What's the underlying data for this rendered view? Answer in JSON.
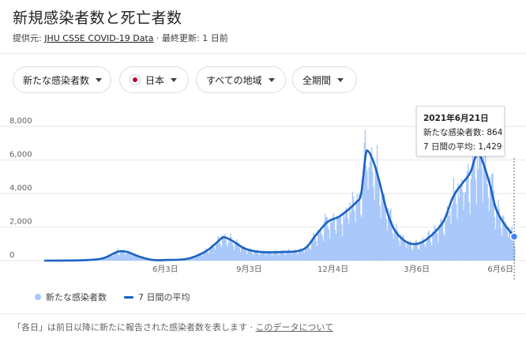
{
  "header": {
    "title": "新規感染者数と死亡者数",
    "source_prefix": "提供元:",
    "source_name": "JHU CSSE COVID-19 Data",
    "separator": "·",
    "updated": "最終更新: 1 日前"
  },
  "filters": [
    {
      "label": "新たな感染者数",
      "icon": "chevron-down-icon"
    },
    {
      "label": "日本",
      "icon": "japan-flag-icon"
    },
    {
      "label": "すべての地域",
      "icon": "chevron-down-icon"
    },
    {
      "label": "全期間",
      "icon": "chevron-down-icon"
    }
  ],
  "tooltip": {
    "date": "2021年6月21日",
    "cases_line": "新たな感染者数: 864",
    "avg_line": "7 日間の平均: 1,429"
  },
  "legend": {
    "bars": "新たな感染者数",
    "line": "7 日間の平均"
  },
  "footer": {
    "note": "「各日」は前日以降に新たに報告された感染者数を表します",
    "separator": "·",
    "link": "このデータについて"
  },
  "colors": {
    "bars": "#a8c7fa",
    "line": "#1a62c2",
    "grid": "#e8eaed"
  },
  "chart_data": {
    "type": "area",
    "x_range": [
      "2020-01-22",
      "2021-06-21"
    ],
    "ylim": [
      0,
      8000
    ],
    "y_ticks": [
      {
        "value": 0,
        "label": "0"
      },
      {
        "value": 2000,
        "label": "2,000"
      },
      {
        "value": 4000,
        "label": "4,000"
      },
      {
        "value": 6000,
        "label": "6,000"
      },
      {
        "value": 8000,
        "label": "8,000"
      }
    ],
    "x_ticks": [
      {
        "date": "2020-06-03",
        "label": "6月3日"
      },
      {
        "date": "2020-09-03",
        "label": "9月3日"
      },
      {
        "date": "2020-12-04",
        "label": "12月4日"
      },
      {
        "date": "2021-03-06",
        "label": "3月6日"
      },
      {
        "date": "2021-06-06",
        "label": "6月6日"
      }
    ],
    "series": [
      {
        "name": "7 日間の平均",
        "points": [
          [
            "2020-01-22",
            0
          ],
          [
            "2020-03-01",
            20
          ],
          [
            "2020-03-25",
            120
          ],
          [
            "2020-04-08",
            450
          ],
          [
            "2020-04-14",
            560
          ],
          [
            "2020-04-22",
            520
          ],
          [
            "2020-05-05",
            250
          ],
          [
            "2020-05-20",
            40
          ],
          [
            "2020-06-05",
            40
          ],
          [
            "2020-06-25",
            90
          ],
          [
            "2020-07-08",
            300
          ],
          [
            "2020-07-20",
            650
          ],
          [
            "2020-08-01",
            1200
          ],
          [
            "2020-08-06",
            1400
          ],
          [
            "2020-08-15",
            1200
          ],
          [
            "2020-08-28",
            750
          ],
          [
            "2020-09-10",
            550
          ],
          [
            "2020-09-25",
            500
          ],
          [
            "2020-10-10",
            520
          ],
          [
            "2020-10-25",
            560
          ],
          [
            "2020-11-05",
            800
          ],
          [
            "2020-11-15",
            1500
          ],
          [
            "2020-11-28",
            2300
          ],
          [
            "2020-12-10",
            2600
          ],
          [
            "2020-12-20",
            3000
          ],
          [
            "2020-12-30",
            3500
          ],
          [
            "2021-01-04",
            4000
          ],
          [
            "2021-01-09",
            6300
          ],
          [
            "2021-01-12",
            6500
          ],
          [
            "2021-01-16",
            6100
          ],
          [
            "2021-01-20",
            5500
          ],
          [
            "2021-01-25",
            4500
          ],
          [
            "2021-02-01",
            3000
          ],
          [
            "2021-02-08",
            2000
          ],
          [
            "2021-02-15",
            1450
          ],
          [
            "2021-02-25",
            1050
          ],
          [
            "2021-03-06",
            1000
          ],
          [
            "2021-03-15",
            1200
          ],
          [
            "2021-03-25",
            1650
          ],
          [
            "2021-04-05",
            2400
          ],
          [
            "2021-04-15",
            3800
          ],
          [
            "2021-04-25",
            4600
          ],
          [
            "2021-05-01",
            5000
          ],
          [
            "2021-05-05",
            5400
          ],
          [
            "2021-05-09",
            6100
          ],
          [
            "2021-05-13",
            6400
          ],
          [
            "2021-05-18",
            5800
          ],
          [
            "2021-05-25",
            4600
          ],
          [
            "2021-06-01",
            3100
          ],
          [
            "2021-06-10",
            2200
          ],
          [
            "2021-06-21",
            1429
          ]
        ]
      },
      {
        "name": "新たな感染者数",
        "points": [
          [
            "2020-01-22",
            0
          ],
          [
            "2020-04-11",
            740
          ],
          [
            "2020-08-07",
            1600
          ],
          [
            "2020-11-25",
            2800
          ],
          [
            "2021-01-08",
            7800
          ],
          [
            "2021-03-06",
            1100
          ],
          [
            "2021-05-08",
            7200
          ],
          [
            "2021-06-21",
            864
          ]
        ]
      }
    ],
    "highlight": {
      "date": "2021-06-21",
      "cases": 864,
      "avg": 1429
    }
  }
}
